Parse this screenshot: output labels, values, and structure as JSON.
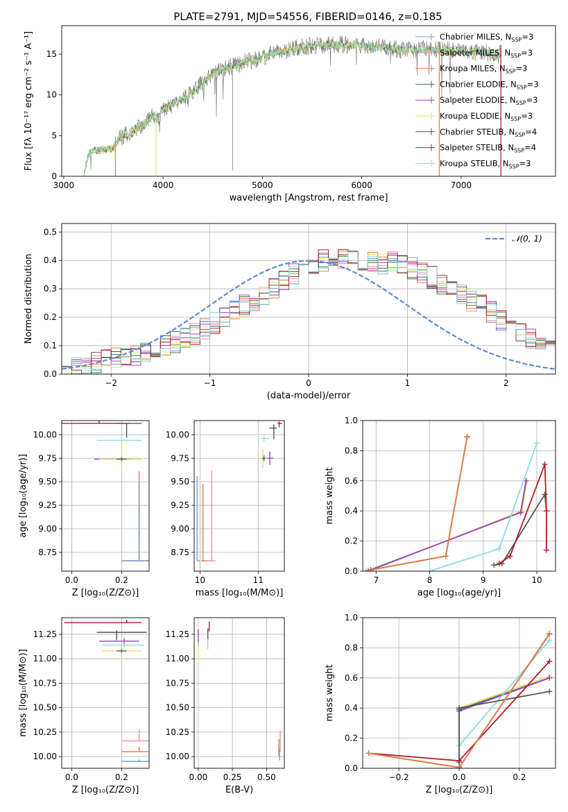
{
  "figure": {
    "title": "PLATE=2791, MJD=54556, FIBERID=0146, z=0.185"
  },
  "colors": {
    "Chabrier MILES": "#6f9fd8",
    "Salpeter MILES": "#f08ca8",
    "Kroupa MILES": "#e07b39",
    "Chabrier ELODIE": "#3d7a47",
    "Salpeter ELODIE": "#a13fc4",
    "Kroupa ELODIE": "#dde36a",
    "Chabrier STELIB": "#555555",
    "Salpeter STELIB": "#b2182b",
    "Kroupa STELIB": "#88dde0",
    "data": "#808080",
    "gaussian": "#5b8ad6"
  },
  "chart_data": [
    {
      "id": "spectrum",
      "type": "line",
      "title": "PLATE=2791, MJD=54556, FIBERID=0146, z=0.185",
      "xlabel": "wavelength [Angstrom, rest frame]",
      "ylabel": "Flux [fλ 10⁻¹⁷ erg cm⁻² s⁻¹ A⁻¹]",
      "xlim": [
        2980,
        7950
      ],
      "ylim": [
        0,
        18.5
      ],
      "xticks": [
        3000,
        4000,
        5000,
        6000,
        7000
      ],
      "yticks": [
        0,
        5,
        10,
        15
      ],
      "legend_position": "top-right",
      "legend": [
        {
          "model": "Chabrier MILES",
          "label": "Chabrier MILES, N",
          "nssp": "=3"
        },
        {
          "model": "Salpeter MILES",
          "label": "Salpeter MILES, N",
          "nssp": "=3"
        },
        {
          "model": "Kroupa MILES",
          "label": "Kroupa MILES, N",
          "nssp": "=3"
        },
        {
          "model": "Chabrier ELODIE",
          "label": "Chabrier ELODIE, N",
          "nssp": "=3"
        },
        {
          "model": "Salpeter ELODIE",
          "label": "Salpeter ELODIE, N",
          "nssp": "=3"
        },
        {
          "model": "Kroupa ELODIE",
          "label": "Kroupa ELODIE, N",
          "nssp": "=3"
        },
        {
          "model": "Chabrier STELIB",
          "label": "Chabrier STELIB, N",
          "nssp": "=4"
        },
        {
          "model": "Salpeter STELIB",
          "label": "Salpeter STELIB, N",
          "nssp": "=4"
        },
        {
          "model": "Kroupa STELIB",
          "label": "Kroupa STELIB, N",
          "nssp": "=3"
        }
      ],
      "continuum": {
        "x": [
          3200,
          3250,
          3300,
          3400,
          3500,
          3550,
          3600,
          3700,
          3800,
          3900,
          3950,
          4000,
          4100,
          4200,
          4300,
          4400,
          4500,
          4600,
          4700,
          4800,
          4900,
          5000,
          5100,
          5200,
          5300,
          5400,
          5500,
          5600,
          5800,
          6000,
          6200,
          6400,
          6600,
          6800,
          7000,
          7200,
          7400
        ],
        "y": [
          0,
          2.8,
          3.2,
          3.3,
          3.4,
          4.5,
          5.0,
          5.6,
          6.4,
          7.4,
          6.8,
          8.3,
          8.8,
          9.4,
          10.3,
          11.5,
          12.6,
          13.2,
          13.5,
          14.0,
          14.2,
          14.6,
          15.2,
          15.3,
          15.6,
          15.9,
          16.0,
          16.1,
          16.2,
          16.0,
          15.9,
          15.5,
          15.6,
          15.5,
          15.4,
          15.2,
          15.1
        ]
      },
      "drops": [
        {
          "model": "Kroupa MILES",
          "x": 3520
        },
        {
          "model": "Kroupa ELODIE",
          "x": 3930
        },
        {
          "model": "Kroupa MILES",
          "x": 6780
        },
        {
          "model": "Salpeter STELIB",
          "x": 7400
        }
      ]
    },
    {
      "id": "residuals",
      "type": "step",
      "xlabel": "(data-model)/error",
      "ylabel": "Normed distribution",
      "xlim": [
        -2.5,
        2.5
      ],
      "ylim": [
        0,
        0.53
      ],
      "xticks": [
        -2,
        -1,
        0,
        1,
        2
      ],
      "yticks": [
        0.0,
        0.1,
        0.2,
        0.3,
        0.4,
        0.5
      ],
      "legend_label": "𝒩(0, 1)",
      "legend_position": "top-right",
      "bin_width": 0.1,
      "bin_start": -2.5,
      "base": [
        0.03,
        0.02,
        0.03,
        0.04,
        0.05,
        0.06,
        0.06,
        0.07,
        0.08,
        0.09,
        0.1,
        0.11,
        0.13,
        0.14,
        0.16,
        0.18,
        0.2,
        0.22,
        0.24,
        0.26,
        0.28,
        0.3,
        0.33,
        0.35,
        0.37,
        0.38,
        0.4,
        0.41,
        0.4,
        0.41,
        0.4,
        0.4,
        0.39,
        0.4,
        0.38,
        0.37,
        0.36,
        0.34,
        0.32,
        0.3,
        0.28,
        0.26,
        0.24,
        0.22,
        0.19,
        0.17,
        0.15,
        0.13,
        0.11,
        0.1,
        0.08,
        0.07,
        0.06,
        0.06,
        0.05,
        0.04,
        0.04,
        0.03,
        0.03,
        0.02
      ]
    },
    {
      "id": "age-vs-z",
      "type": "errorbar",
      "xlabel": "Z [log₁₀(Z/Z⊙)]",
      "ylabel": "age  [log₁₀(age/yr)]",
      "xlim": [
        -0.04,
        0.31
      ],
      "ylim": [
        8.55,
        10.15
      ],
      "xticks": [
        0.0,
        0.2
      ],
      "yticks": [
        8.75,
        9.0,
        9.25,
        9.5,
        9.75,
        10.0
      ],
      "points": [
        {
          "model": "Salpeter STELIB",
          "x": 0.11,
          "y": 10.12,
          "xerr": [
            0.19,
            0.12
          ],
          "yerr": [
            0.0,
            0.03
          ]
        },
        {
          "model": "Chabrier STELIB",
          "x": 0.22,
          "y": 10.12,
          "xerr": [
            0.04,
            0.06
          ],
          "yerr": [
            0.15,
            0.0
          ]
        },
        {
          "model": "Kroupa STELIB",
          "x": 0.2,
          "y": 9.94,
          "xerr": [
            0.1,
            0.08
          ],
          "yerr": [
            0.02,
            0.02
          ]
        },
        {
          "model": "Salpeter ELODIE",
          "x": 0.2,
          "y": 9.74,
          "xerr": [
            0.11,
            0.04
          ],
          "yerr": [
            0.02,
            0.02
          ]
        },
        {
          "model": "Kroupa ELODIE",
          "x": 0.2,
          "y": 9.74,
          "xerr": [
            0.09,
            0.08
          ],
          "yerr": [
            0.12,
            0.2
          ]
        },
        {
          "model": "Chabrier ELODIE",
          "x": 0.2,
          "y": 9.74,
          "xerr": [
            0.02,
            0.02
          ],
          "yerr": [
            0.02,
            0.02
          ]
        },
        {
          "model": "Kroupa MILES",
          "x": 0.27,
          "y": 8.66,
          "xerr": [
            0.07,
            0.04
          ],
          "yerr": [
            0.0,
            0.95
          ]
        },
        {
          "model": "Salpeter MILES",
          "x": 0.27,
          "y": 8.66,
          "xerr": [
            0.07,
            0.04
          ],
          "yerr": [
            0.0,
            0.9
          ]
        },
        {
          "model": "Chabrier MILES",
          "x": 0.27,
          "y": 8.66,
          "xerr": [
            0.07,
            0.04
          ],
          "yerr": [
            0.0,
            0.85
          ]
        }
      ]
    },
    {
      "id": "age-vs-mass",
      "type": "errorbar",
      "xlabel": "mass [log₁₀(M/M⊙)]",
      "ylabel": "",
      "xlim": [
        9.9,
        11.45
      ],
      "ylim": [
        8.55,
        10.15
      ],
      "xticks": [
        10,
        11
      ],
      "yticks": [
        8.75,
        9.0,
        9.25,
        9.5,
        9.75,
        10.0
      ],
      "points": [
        {
          "model": "Salpeter STELIB",
          "x": 11.36,
          "y": 10.12,
          "xerr": [
            0.03,
            0.05
          ],
          "yerr": [
            0.04,
            0.02
          ]
        },
        {
          "model": "Chabrier STELIB",
          "x": 11.27,
          "y": 10.07,
          "xerr": [
            0.08,
            0.05
          ],
          "yerr": [
            0.12,
            0.04
          ]
        },
        {
          "model": "Kroupa STELIB",
          "x": 11.1,
          "y": 9.96,
          "xerr": [
            0.05,
            0.08
          ],
          "yerr": [
            0.03,
            0.03
          ]
        },
        {
          "model": "Salpeter ELODIE",
          "x": 11.2,
          "y": 9.75,
          "xerr": [
            0.06,
            0.06
          ],
          "yerr": [
            0.07,
            0.07
          ]
        },
        {
          "model": "Kroupa ELODIE",
          "x": 11.08,
          "y": 9.75,
          "xerr": [
            0.1,
            0.07
          ],
          "yerr": [
            0.1,
            0.1
          ]
        },
        {
          "model": "Chabrier ELODIE",
          "x": 11.1,
          "y": 9.75,
          "xerr": [
            0.03,
            0.03
          ],
          "yerr": [
            0.03,
            0.03
          ]
        },
        {
          "model": "Chabrier MILES",
          "x": 9.95,
          "y": 8.66,
          "xerr": [
            0.0,
            0.05
          ],
          "yerr": [
            0.0,
            0.9
          ]
        },
        {
          "model": "Kroupa MILES",
          "x": 10.05,
          "y": 8.66,
          "xerr": [
            0.03,
            0.12
          ],
          "yerr": [
            0.0,
            0.82
          ]
        },
        {
          "model": "Salpeter MILES",
          "x": 10.2,
          "y": 8.66,
          "xerr": [
            0.12,
            0.07
          ],
          "yerr": [
            0.0,
            0.96
          ]
        }
      ]
    },
    {
      "id": "weight-vs-age",
      "type": "line",
      "xlabel": "age  [log₁₀(age/yr)]",
      "ylabel": "mass weight",
      "xlim": [
        6.75,
        10.35
      ],
      "ylim": [
        0.0,
        1.0
      ],
      "xticks": [
        7,
        8,
        9,
        10
      ],
      "yticks": [
        0.0,
        0.2,
        0.4,
        0.6,
        0.8,
        1.0
      ],
      "series": [
        {
          "model": "Chabrier ELODIE",
          "x": [
            6.9,
            9.7,
            9.8
          ],
          "y": [
            0.01,
            0.39,
            0.6
          ]
        },
        {
          "model": "Kroupa ELODIE",
          "x": [
            6.9,
            9.72,
            9.82
          ],
          "y": [
            0.005,
            0.4,
            0.6
          ]
        },
        {
          "model": "Salpeter ELODIE",
          "x": [
            6.9,
            9.7,
            9.8
          ],
          "y": [
            0.008,
            0.39,
            0.6
          ]
        },
        {
          "model": "Kroupa STELIB",
          "x": [
            8.0,
            9.3,
            10.0
          ],
          "y": [
            0.0,
            0.15,
            0.85
          ]
        },
        {
          "model": "Chabrier STELIB",
          "x": [
            9.2,
            9.35,
            10.15,
            10.18
          ],
          "y": [
            0.04,
            0.05,
            0.51,
            0.4
          ]
        },
        {
          "model": "Salpeter STELIB",
          "x": [
            9.3,
            9.5,
            10.15,
            10.18,
            10.18
          ],
          "y": [
            0.05,
            0.1,
            0.71,
            0.4,
            0.14
          ]
        },
        {
          "model": "Chabrier MILES",
          "x": [
            6.85,
            8.3,
            8.7
          ],
          "y": [
            0.005,
            0.1,
            0.89
          ]
        },
        {
          "model": "Salpeter MILES",
          "x": [
            6.85,
            8.3,
            8.7
          ],
          "y": [
            0.005,
            0.1,
            0.89
          ]
        },
        {
          "model": "Kroupa MILES",
          "x": [
            6.85,
            8.3,
            8.7
          ],
          "y": [
            0.005,
            0.1,
            0.895
          ]
        }
      ]
    },
    {
      "id": "mass-vs-z",
      "type": "errorbar",
      "xlabel": "Z [log₁₀(Z/Z⊙)]",
      "ylabel": "mass [log₁₀(M/M⊙)]",
      "xlim": [
        -0.04,
        0.31
      ],
      "ylim": [
        9.88,
        11.42
      ],
      "xticks": [
        0.0,
        0.2
      ],
      "yticks": [
        10.0,
        10.25,
        10.5,
        10.75,
        11.0,
        11.25
      ],
      "points": [
        {
          "model": "Salpeter STELIB",
          "x": 0.22,
          "y": 11.37,
          "xerr": [
            0.25,
            0.06
          ],
          "yerr": [
            0.0,
            0.03
          ]
        },
        {
          "model": "Chabrier STELIB",
          "x": 0.18,
          "y": 11.27,
          "xerr": [
            0.08,
            0.12
          ],
          "yerr": [
            0.08,
            0.02
          ]
        },
        {
          "model": "Salpeter ELODIE",
          "x": 0.21,
          "y": 11.18,
          "xerr": [
            0.1,
            0.06
          ],
          "yerr": [
            0.05,
            0.03
          ]
        },
        {
          "model": "Kroupa STELIB",
          "x": 0.21,
          "y": 11.14,
          "xerr": [
            0.09,
            0.08
          ],
          "yerr": [
            0.02,
            0.02
          ]
        },
        {
          "model": "Kroupa ELODIE",
          "x": 0.2,
          "y": 11.08,
          "xerr": [
            0.08,
            0.08
          ],
          "yerr": [
            0.12,
            0.08
          ]
        },
        {
          "model": "Chabrier ELODIE",
          "x": 0.2,
          "y": 11.08,
          "xerr": [
            0.02,
            0.02
          ],
          "yerr": [
            0.02,
            0.02
          ]
        },
        {
          "model": "Salpeter MILES",
          "x": 0.27,
          "y": 10.16,
          "xerr": [
            0.07,
            0.05
          ],
          "yerr": [
            0.0,
            0.12
          ]
        },
        {
          "model": "Kroupa MILES",
          "x": 0.27,
          "y": 10.05,
          "xerr": [
            0.07,
            0.05
          ],
          "yerr": [
            0.0,
            0.05
          ]
        },
        {
          "model": "Chabrier MILES",
          "x": 0.27,
          "y": 9.95,
          "xerr": [
            0.07,
            0.05
          ],
          "yerr": [
            0.0,
            0.02
          ]
        }
      ]
    },
    {
      "id": "mass-vs-ebv",
      "type": "errorbar",
      "xlabel": "E(B-V)",
      "ylabel": "",
      "xlim": [
        -0.03,
        0.63
      ],
      "ylim": [
        9.88,
        11.42
      ],
      "xticks": [
        0.0,
        0.25,
        0.5
      ],
      "yticks": [
        10.0,
        10.25,
        10.5,
        10.75,
        11.0,
        11.25
      ],
      "points": [
        {
          "model": "Salpeter STELIB",
          "x": 0.08,
          "y": 11.33,
          "xerr": [
            0.0,
            0.0
          ],
          "yerr": [
            0.05,
            0.05
          ]
        },
        {
          "model": "Chabrier STELIB",
          "x": 0.07,
          "y": 11.25,
          "xerr": [
            0.0,
            0.0
          ],
          "yerr": [
            0.06,
            0.06
          ]
        },
        {
          "model": "Salpeter ELODIE",
          "x": 0.0,
          "y": 11.2,
          "xerr": [
            0.0,
            0.0
          ],
          "yerr": [
            0.08,
            0.1
          ]
        },
        {
          "model": "Kroupa STELIB",
          "x": 0.07,
          "y": 11.15,
          "xerr": [
            0.0,
            0.0
          ],
          "yerr": [
            0.05,
            0.05
          ]
        },
        {
          "model": "Kroupa ELODIE",
          "x": 0.0,
          "y": 11.05,
          "xerr": [
            0.0,
            0.0
          ],
          "yerr": [
            0.1,
            0.12
          ]
        },
        {
          "model": "Salpeter MILES",
          "x": 0.6,
          "y": 10.15,
          "xerr": [
            0.0,
            0.0
          ],
          "yerr": [
            0.1,
            0.12
          ]
        },
        {
          "model": "Kroupa MILES",
          "x": 0.59,
          "y": 10.08,
          "xerr": [
            0.0,
            0.0
          ],
          "yerr": [
            0.08,
            0.1
          ]
        },
        {
          "model": "Chabrier MILES",
          "x": 0.595,
          "y": 10.02,
          "xerr": [
            0.0,
            0.0
          ],
          "yerr": [
            0.06,
            0.06
          ]
        }
      ]
    },
    {
      "id": "weight-vs-z",
      "type": "line",
      "xlabel": "Z [log₁₀(Z/Z⊙)]",
      "ylabel": "mass weight",
      "xlim": [
        -0.32,
        0.32
      ],
      "ylim": [
        0.0,
        1.0
      ],
      "xticks": [
        -0.2,
        0.0,
        0.2
      ],
      "yticks": [
        0.0,
        0.2,
        0.4,
        0.6,
        0.8,
        1.0
      ],
      "series": [
        {
          "model": "Chabrier ELODIE",
          "x": [
            0.0,
            0.0,
            0.3
          ],
          "y": [
            0.01,
            0.39,
            0.6
          ]
        },
        {
          "model": "Kroupa ELODIE",
          "x": [
            0.0,
            0.0,
            0.3
          ],
          "y": [
            0.005,
            0.4,
            0.61
          ]
        },
        {
          "model": "Salpeter ELODIE",
          "x": [
            0.0,
            0.0,
            0.3
          ],
          "y": [
            0.008,
            0.38,
            0.6
          ]
        },
        {
          "model": "Kroupa STELIB",
          "x": [
            0.0,
            0.0,
            0.3
          ],
          "y": [
            0.0,
            0.15,
            0.85
          ]
        },
        {
          "model": "Chabrier STELIB",
          "x": [
            0.0,
            0.0,
            0.3
          ],
          "y": [
            0.04,
            0.4,
            0.51
          ]
        },
        {
          "model": "Salpeter STELIB",
          "x": [
            -0.3,
            0.0,
            0.3
          ],
          "y": [
            0.1,
            0.05,
            0.71
          ]
        },
        {
          "model": "Chabrier MILES",
          "x": [
            -0.3,
            0.0,
            0.3
          ],
          "y": [
            0.1,
            0.005,
            0.89
          ]
        },
        {
          "model": "Salpeter MILES",
          "x": [
            -0.3,
            0.0,
            0.3
          ],
          "y": [
            0.1,
            0.005,
            0.89
          ]
        },
        {
          "model": "Kroupa MILES",
          "x": [
            -0.3,
            0.0,
            0.3
          ],
          "y": [
            0.1,
            0.005,
            0.895
          ]
        }
      ]
    }
  ]
}
